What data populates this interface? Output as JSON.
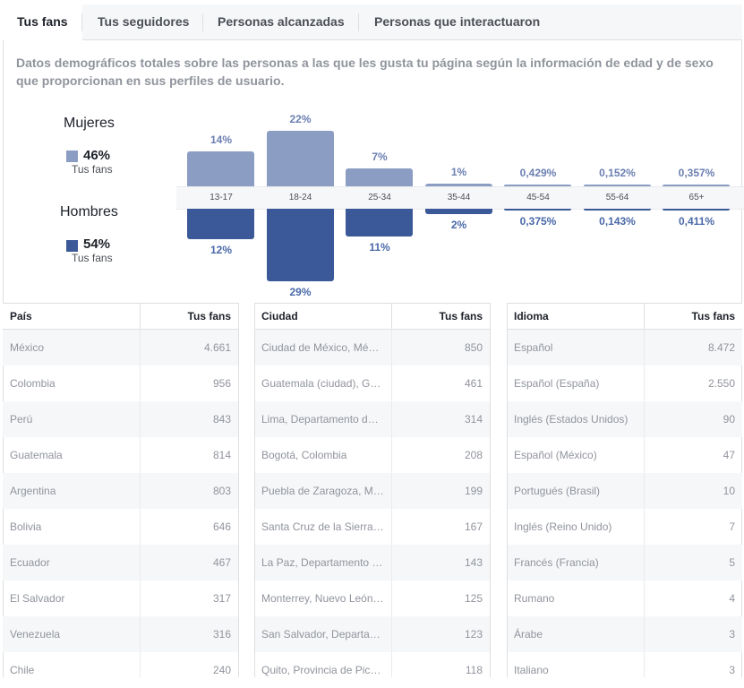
{
  "tabs": [
    "Tus fans",
    "Tus seguidores",
    "Personas alcanzadas",
    "Personas que interactuaron"
  ],
  "description": "Datos demográficos totales sobre las personas a las que les gusta tu página según la información de edad y de sexo que proporcionan en sus perfiles de usuario.",
  "legend": {
    "women": {
      "title": "Mujeres",
      "pct": "46%",
      "sub": "Tus fans",
      "color": "#8b9dc3"
    },
    "men": {
      "title": "Hombres",
      "pct": "54%",
      "sub": "Tus fans",
      "color": "#3b5998"
    }
  },
  "chart_data": {
    "type": "bar",
    "categories": [
      "13-17",
      "18-24",
      "25-34",
      "35-44",
      "45-54",
      "55-64",
      "65+"
    ],
    "series": [
      {
        "name": "Mujeres",
        "values": [
          14,
          22,
          7,
          1,
          0.429,
          0.152,
          0.357
        ],
        "labels": [
          "14%",
          "22%",
          "7%",
          "1%",
          "0,429%",
          "0,152%",
          "0,357%"
        ]
      },
      {
        "name": "Hombres",
        "values": [
          12,
          29,
          11,
          2,
          0.375,
          0.143,
          0.411
        ],
        "labels": [
          "12%",
          "29%",
          "11%",
          "2%",
          "0,375%",
          "0,143%",
          "0,411%"
        ]
      }
    ]
  },
  "tables": [
    {
      "header": [
        "País",
        "Tus fans"
      ],
      "rows": [
        [
          "México",
          "4.661"
        ],
        [
          "Colombia",
          "956"
        ],
        [
          "Perú",
          "843"
        ],
        [
          "Guatemala",
          "814"
        ],
        [
          "Argentina",
          "803"
        ],
        [
          "Bolivia",
          "646"
        ],
        [
          "Ecuador",
          "467"
        ],
        [
          "El Salvador",
          "317"
        ],
        [
          "Venezuela",
          "316"
        ],
        [
          "Chile",
          "240"
        ]
      ]
    },
    {
      "header": [
        "Ciudad",
        "Tus fans"
      ],
      "rows": [
        [
          "Ciudad de México, Mé…",
          "850"
        ],
        [
          "Guatemala (ciudad), G…",
          "461"
        ],
        [
          "Lima, Departamento d…",
          "314"
        ],
        [
          "Bogotá, Colombia",
          "208"
        ],
        [
          "Puebla de Zaragoza, M…",
          "199"
        ],
        [
          "Santa Cruz de la Sierra…",
          "167"
        ],
        [
          "La Paz, Departamento …",
          "143"
        ],
        [
          "Monterrey, Nuevo León…",
          "125"
        ],
        [
          "San Salvador, Departa…",
          "123"
        ],
        [
          "Quito, Provincia de Pic…",
          "118"
        ]
      ]
    },
    {
      "header": [
        "Idioma",
        "Tus fans"
      ],
      "rows": [
        [
          "Español",
          "8.472"
        ],
        [
          "Español (España)",
          "2.550"
        ],
        [
          "Inglés (Estados Unidos)",
          "90"
        ],
        [
          "Español (México)",
          "47"
        ],
        [
          "Portugués (Brasil)",
          "10"
        ],
        [
          "Inglés (Reino Unido)",
          "7"
        ],
        [
          "Francés (Francia)",
          "5"
        ],
        [
          "Rumano",
          "4"
        ],
        [
          "Árabe",
          "3"
        ],
        [
          "Italiano",
          "3"
        ]
      ]
    }
  ]
}
